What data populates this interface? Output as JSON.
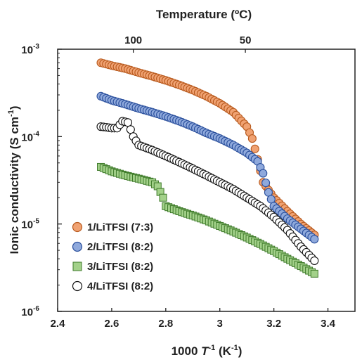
{
  "chart_data": {
    "type": "scatter",
    "xlabel_prefix": "1000 ",
    "xlabel_var": "T",
    "xlabel_sup": "-1",
    "xlabel_unit_open": " (K",
    "xlabel_unit_sup": "-1",
    "xlabel_unit_close": ")",
    "ylabel_main": "Ionic conductivity (S cm",
    "ylabel_sup": "-1",
    "ylabel_close": ")",
    "top_label": "Temperature (ºC)",
    "xlim": [
      2.4,
      3.5
    ],
    "ylim_log10": [
      -6,
      -3
    ],
    "y_scale": "log",
    "x_ticks": [
      {
        "value": 2.4,
        "label": "2.4"
      },
      {
        "value": 2.6,
        "label": "2.6"
      },
      {
        "value": 2.8,
        "label": "2.8"
      },
      {
        "value": 3.0,
        "label": "3"
      },
      {
        "value": 3.2,
        "label": "3.2"
      },
      {
        "value": 3.4,
        "label": "3.4"
      }
    ],
    "y_ticks": [
      {
        "exp": -3,
        "base": "10",
        "sup": "-3"
      },
      {
        "exp": -4,
        "base": "10",
        "sup": "-4"
      },
      {
        "exp": -5,
        "base": "10",
        "sup": "-5"
      },
      {
        "exp": -6,
        "base": "10",
        "sup": "-6"
      }
    ],
    "top_ticks": [
      {
        "celsius": 100,
        "label": "100"
      },
      {
        "celsius": 50,
        "label": "50"
      }
    ],
    "legend_position": "bottom-left",
    "series": [
      {
        "name": "1/LiTFSI (7:3)",
        "marker": "circle",
        "fill": "#F0A272",
        "stroke": "#B85A1E",
        "points": [
          [
            2.56,
            0.0007
          ],
          [
            2.6,
            0.00065
          ],
          [
            2.65,
            0.0006
          ],
          [
            2.7,
            0.00054
          ],
          [
            2.75,
            0.00049
          ],
          [
            2.8,
            0.00044
          ],
          [
            2.85,
            0.00039
          ],
          [
            2.9,
            0.00034
          ],
          [
            2.95,
            0.00029
          ],
          [
            3.0,
            0.00024
          ],
          [
            3.05,
            0.00019
          ],
          [
            3.1,
            0.00013
          ],
          [
            3.12,
            9.5e-05
          ],
          [
            3.14,
            5.5e-05
          ],
          [
            3.16,
            3e-05
          ],
          [
            3.2,
            2e-05
          ],
          [
            3.25,
            1.4e-05
          ],
          [
            3.3,
            1e-05
          ],
          [
            3.35,
            7.5e-06
          ]
        ]
      },
      {
        "name": "2/LiTFSI (8:2)",
        "marker": "circle",
        "fill": "#8FA9DC",
        "stroke": "#2A4F9C",
        "points": [
          [
            2.56,
            0.00029
          ],
          [
            2.6,
            0.00026
          ],
          [
            2.65,
            0.000235
          ],
          [
            2.7,
            0.00021
          ],
          [
            2.75,
            0.00019
          ],
          [
            2.8,
            0.00017
          ],
          [
            2.85,
            0.00015
          ],
          [
            2.9,
            0.00013
          ],
          [
            2.95,
            0.00011
          ],
          [
            3.0,
            9.5e-05
          ],
          [
            3.05,
            8e-05
          ],
          [
            3.1,
            6.5e-05
          ],
          [
            3.14,
            5.2e-05
          ],
          [
            3.16,
            3.8e-05
          ],
          [
            3.18,
            2.3e-05
          ],
          [
            3.2,
            1.6e-05
          ],
          [
            3.25,
            1.15e-05
          ],
          [
            3.3,
            8.8e-06
          ],
          [
            3.35,
            6.7e-06
          ]
        ]
      },
      {
        "name": "3/LiTFSI (8:2)",
        "marker": "square",
        "fill": "#A3D18A",
        "stroke": "#3E7A2A",
        "points": [
          [
            2.56,
            4.5e-05
          ],
          [
            2.6,
            4e-05
          ],
          [
            2.65,
            3.6e-05
          ],
          [
            2.7,
            3.3e-05
          ],
          [
            2.75,
            3e-05
          ],
          [
            2.77,
            2.7e-05
          ],
          [
            2.79,
            2e-05
          ],
          [
            2.8,
            1.6e-05
          ],
          [
            2.85,
            1.4e-05
          ],
          [
            2.9,
            1.25e-05
          ],
          [
            2.95,
            1.1e-05
          ],
          [
            3.0,
            9.5e-06
          ],
          [
            3.05,
            8.2e-06
          ],
          [
            3.1,
            7e-06
          ],
          [
            3.15,
            5.9e-06
          ],
          [
            3.2,
            4.9e-06
          ],
          [
            3.25,
            4e-06
          ],
          [
            3.3,
            3.3e-06
          ],
          [
            3.35,
            2.7e-06
          ]
        ]
      },
      {
        "name": "4/LiTFSI (8:2)",
        "marker": "circle",
        "fill": "#ffffff",
        "stroke": "#111111",
        "points": [
          [
            2.56,
            0.00013
          ],
          [
            2.58,
            0.000128
          ],
          [
            2.6,
            0.000125
          ],
          [
            2.62,
            0.000125
          ],
          [
            2.64,
            0.00015
          ],
          [
            2.66,
            0.000145
          ],
          [
            2.68,
            0.0001
          ],
          [
            2.7,
            8e-05
          ],
          [
            2.75,
            7e-05
          ],
          [
            2.8,
            6e-05
          ],
          [
            2.85,
            5.1e-05
          ],
          [
            2.9,
            4.3e-05
          ],
          [
            2.95,
            3.6e-05
          ],
          [
            3.0,
            3e-05
          ],
          [
            3.05,
            2.5e-05
          ],
          [
            3.1,
            2e-05
          ],
          [
            3.15,
            1.6e-05
          ],
          [
            3.2,
            1.2e-05
          ],
          [
            3.25,
            8.5e-06
          ],
          [
            3.3,
            5.5e-06
          ],
          [
            3.35,
            3.8e-06
          ]
        ]
      }
    ]
  }
}
